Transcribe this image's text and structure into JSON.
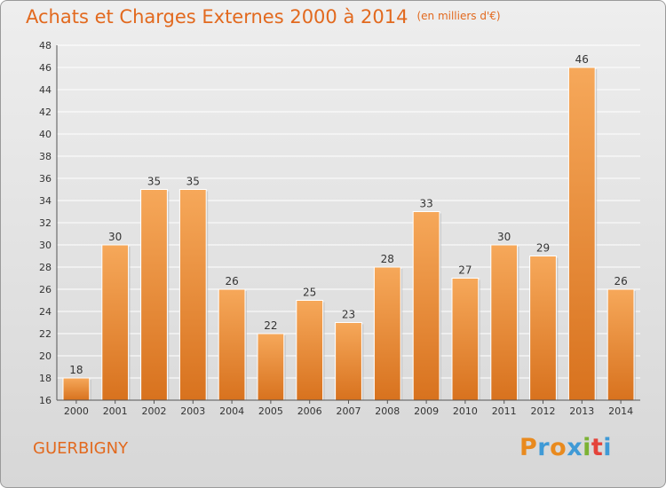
{
  "header": {
    "title": "Achats et Charges Externes 2000 à 2014",
    "unit": "(en milliers d'€)"
  },
  "footer": {
    "commune": "GUERBIGNY",
    "logo_text": "Proxiti",
    "logo_colors": [
      "#e98a1e",
      "#3f9ad6",
      "#e98a1e",
      "#3f9ad6",
      "#7cb234",
      "#e4433a",
      "#3f9ad6"
    ]
  },
  "colors": {
    "accent": "#e2691e",
    "bar_top": "#f6a85a",
    "bar_bottom": "#d8721e",
    "grid": "#ffffff"
  },
  "chart_data": {
    "type": "bar",
    "title": "Achats et Charges Externes 2000 à 2014",
    "subtitle": "(en milliers d'€)",
    "xlabel": "",
    "ylabel": "",
    "categories": [
      "2000",
      "2001",
      "2002",
      "2003",
      "2004",
      "2005",
      "2006",
      "2007",
      "2008",
      "2009",
      "2010",
      "2011",
      "2012",
      "2013",
      "2014"
    ],
    "values": [
      18,
      30,
      35,
      35,
      26,
      22,
      25,
      23,
      28,
      33,
      27,
      30,
      29,
      46,
      26
    ],
    "ylim": [
      16,
      48
    ],
    "yticks": [
      16,
      18,
      20,
      22,
      24,
      26,
      28,
      30,
      32,
      34,
      36,
      38,
      40,
      42,
      44,
      46,
      48
    ],
    "grid": true,
    "legend": "none"
  }
}
